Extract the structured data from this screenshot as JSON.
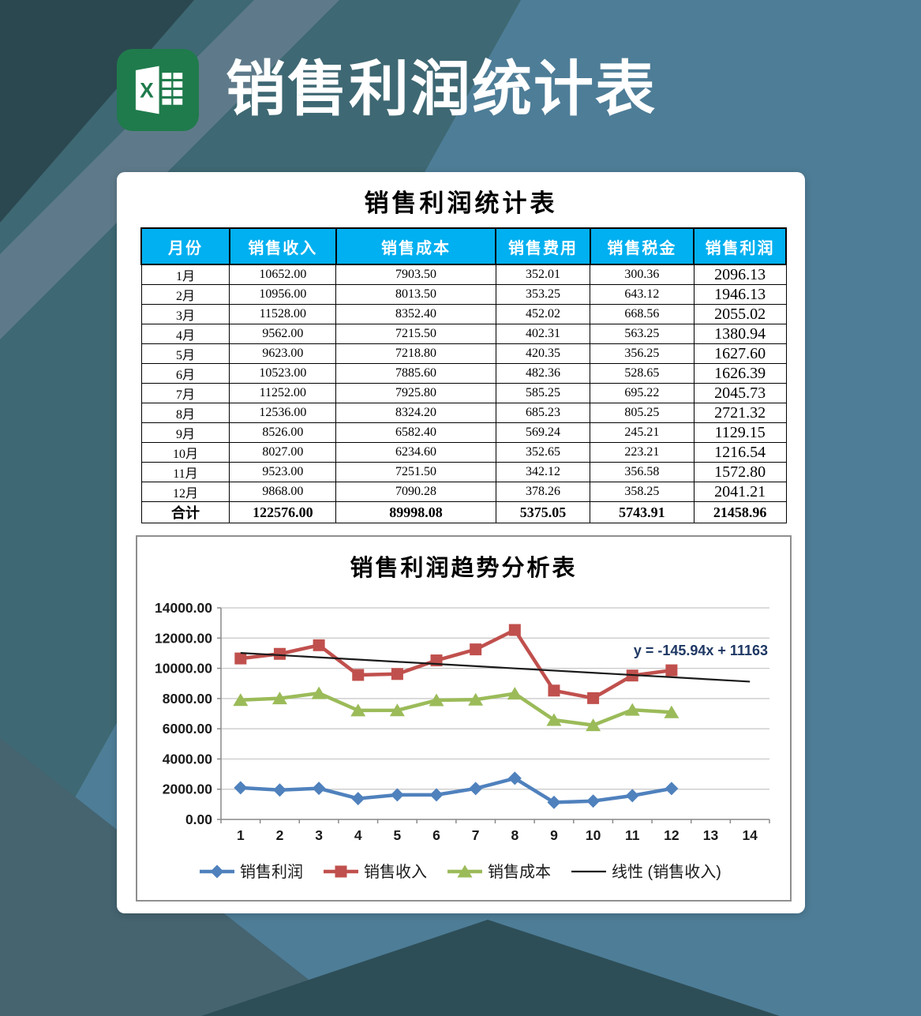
{
  "header": {
    "title": "销售利润统计表",
    "app_icon": "excel-icon"
  },
  "table": {
    "title": "销售利润统计表",
    "columns": [
      "月份",
      "销售收入",
      "销售成本",
      "销售费用",
      "销售税金",
      "销售利润"
    ],
    "rows": [
      [
        "1月",
        "10652.00",
        "7903.50",
        "352.01",
        "300.36",
        "2096.13"
      ],
      [
        "2月",
        "10956.00",
        "8013.50",
        "353.25",
        "643.12",
        "1946.13"
      ],
      [
        "3月",
        "11528.00",
        "8352.40",
        "452.02",
        "668.56",
        "2055.02"
      ],
      [
        "4月",
        "9562.00",
        "7215.50",
        "402.31",
        "563.25",
        "1380.94"
      ],
      [
        "5月",
        "9623.00",
        "7218.80",
        "420.35",
        "356.25",
        "1627.60"
      ],
      [
        "6月",
        "10523.00",
        "7885.60",
        "482.36",
        "528.65",
        "1626.39"
      ],
      [
        "7月",
        "11252.00",
        "7925.80",
        "585.25",
        "695.22",
        "2045.73"
      ],
      [
        "8月",
        "12536.00",
        "8324.20",
        "685.23",
        "805.25",
        "2721.32"
      ],
      [
        "9月",
        "8526.00",
        "6582.40",
        "569.24",
        "245.21",
        "1129.15"
      ],
      [
        "10月",
        "8027.00",
        "6234.60",
        "352.65",
        "223.21",
        "1216.54"
      ],
      [
        "11月",
        "9523.00",
        "7251.50",
        "342.12",
        "356.58",
        "1572.80"
      ],
      [
        "12月",
        "9868.00",
        "7090.28",
        "378.26",
        "358.25",
        "2041.21"
      ]
    ],
    "total_row": [
      "合计",
      "122576.00",
      "89998.08",
      "5375.05",
      "5743.91",
      "21458.96"
    ]
  },
  "chart_data": {
    "type": "line",
    "title": "销售利润趋势分析表",
    "x": [
      1,
      2,
      3,
      4,
      5,
      6,
      7,
      8,
      9,
      10,
      11,
      12
    ],
    "xlim": [
      0,
      14
    ],
    "ylim": [
      0,
      14000
    ],
    "y_tick_step": 2000,
    "x_tick_labels": [
      "1",
      "2",
      "3",
      "4",
      "5",
      "6",
      "7",
      "8",
      "9",
      "10",
      "11",
      "12",
      "13",
      "14"
    ],
    "grid": true,
    "legend_position": "bottom",
    "series": [
      {
        "name": "销售利润",
        "color": "#4F81BD",
        "marker": "diamond",
        "values": [
          2096.13,
          1946.13,
          2055.02,
          1380.94,
          1627.6,
          1626.39,
          2045.73,
          2721.32,
          1129.15,
          1216.54,
          1572.8,
          2041.21
        ]
      },
      {
        "name": "销售收入",
        "color": "#C0504D",
        "marker": "square",
        "values": [
          10652,
          10956,
          11528,
          9562,
          9623,
          10523,
          11252,
          12536,
          8526,
          8027,
          9523,
          9868
        ]
      },
      {
        "name": "销售成本",
        "color": "#9BBB59",
        "marker": "triangle",
        "values": [
          7903.5,
          8013.5,
          8352.4,
          7215.5,
          7218.8,
          7885.6,
          7925.8,
          8324.2,
          6582.4,
          6234.6,
          7251.5,
          7090.28
        ]
      }
    ],
    "trendline": {
      "name": "线性 (销售收入)",
      "equation": "y = -145.94x + 11163",
      "slope": -145.94,
      "intercept": 11163,
      "x_range": [
        1,
        14
      ],
      "color": "#1A1A1A"
    }
  },
  "colors": {
    "excel_green": "#1F7B4C",
    "table_header_bg": "#00B0F0",
    "table_header_text": "#FFFFFF",
    "card_bg": "#FFFFFF",
    "bg_base": "#4E7D97",
    "bg_mid": "#3E6873",
    "bg_light_band": "#5E7A8A",
    "bg_dark": "#2B4850",
    "bg_bottom_slate": "#456470",
    "bg_bottom_dark": "#2E4E57",
    "equation_color": "#1F3864",
    "chart_border": "#8F8F8F",
    "grid_color": "#C6C6C6",
    "axis_color": "#898989",
    "tick_label_color": "#1A1A1A"
  }
}
